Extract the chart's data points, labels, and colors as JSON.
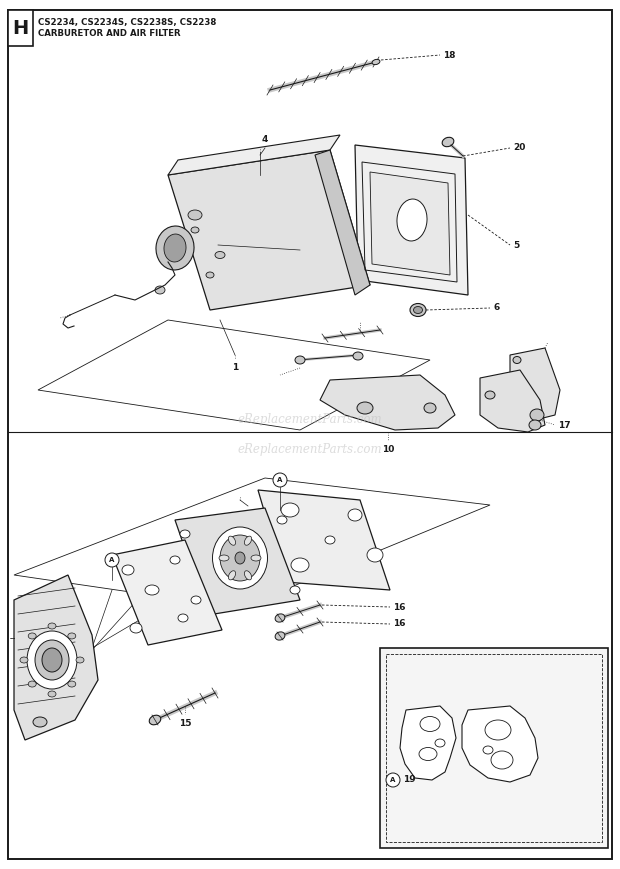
{
  "title_letter": "H",
  "title_line1": "CS2234, CS2234S, CS2238S, CS2238",
  "title_line2": "CARBURETOR AND AIR FILTER",
  "watermark": "eReplacementParts.com",
  "bg": "#ffffff",
  "border": "#1a1a1a",
  "ink": "#1a1a1a",
  "gray_light": "#e2e2e2",
  "gray_mid": "#c8c8c8",
  "gray_dark": "#a0a0a0",
  "fig_w": 6.2,
  "fig_h": 8.69,
  "dpi": 100
}
